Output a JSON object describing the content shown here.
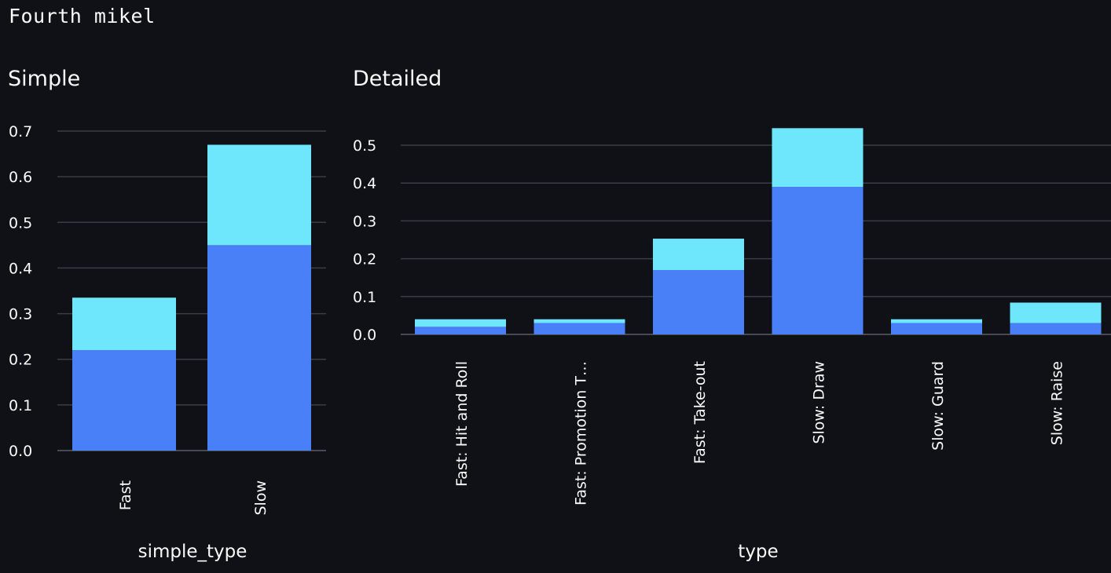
{
  "page": {
    "title": "Fourth mikel"
  },
  "colors": {
    "background": "#0f1116",
    "series_bottom": "#4a80f7",
    "series_top": "#6ee7fc",
    "grid": "#3a3d45"
  },
  "chart_data": [
    {
      "type": "bar",
      "stacked": true,
      "title": "Simple",
      "xlabel": "simple_type",
      "ylabel": "",
      "categories": [
        "Fast",
        "Slow"
      ],
      "series": [
        {
          "values": [
            0.22,
            0.45
          ]
        },
        {
          "values": [
            0.115,
            0.22
          ]
        }
      ],
      "yticks": [
        0.0,
        0.1,
        0.2,
        0.3,
        0.4,
        0.5,
        0.6,
        0.7
      ],
      "ytick_labels": [
        "0.0",
        "0.1",
        "0.2",
        "0.3",
        "0.4",
        "0.5",
        "0.6",
        "0.7"
      ],
      "ylim": [
        0,
        0.7
      ],
      "grid": true
    },
    {
      "type": "bar",
      "stacked": true,
      "title": "Detailed",
      "xlabel": "type",
      "ylabel": "",
      "categories": [
        "Fast: Hit and Roll",
        "Fast: Promotion T…",
        "Fast: Take-out",
        "Slow: Draw",
        "Slow: Guard",
        "Slow: Raise"
      ],
      "series": [
        {
          "values": [
            0.02,
            0.03,
            0.17,
            0.39,
            0.03,
            0.03
          ]
        },
        {
          "values": [
            0.02,
            0.01,
            0.083,
            0.155,
            0.01,
            0.054
          ]
        }
      ],
      "yticks": [
        0.0,
        0.1,
        0.2,
        0.3,
        0.4,
        0.5
      ],
      "ytick_labels": [
        "0.0",
        "0.1",
        "0.2",
        "0.3",
        "0.4",
        "0.5"
      ],
      "ylim": [
        0,
        0.5
      ],
      "grid": true
    }
  ]
}
